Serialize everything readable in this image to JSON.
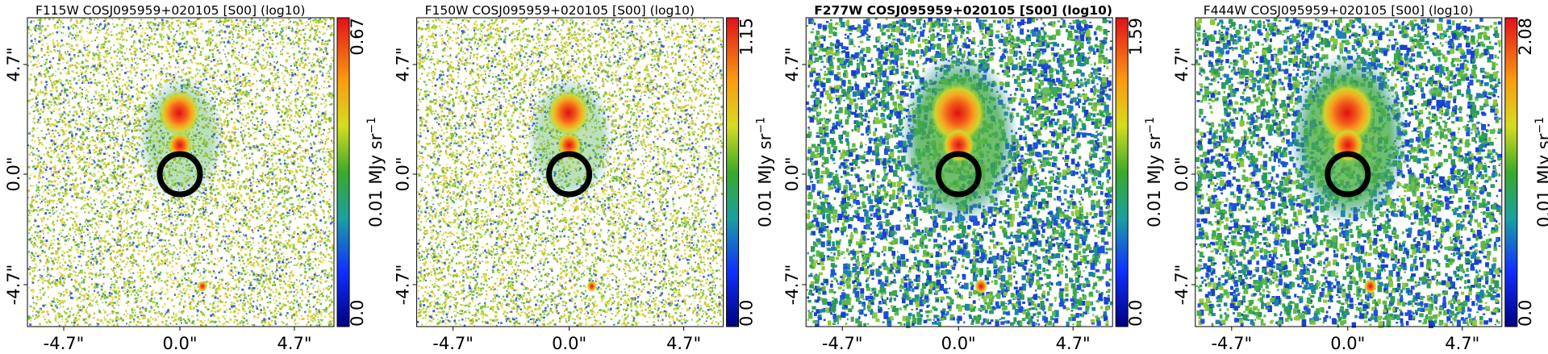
{
  "panels": [
    {
      "title": "F115W COSJ095959+020105 [S00] (log10)",
      "title_bold": false,
      "xticks": [
        "-4.7\"",
        "0.0\"",
        "4.7\""
      ],
      "yticks": [
        "4.7\"",
        "0.0\"",
        "-4.7\""
      ],
      "colorbar_label": "0.01 MJy sr",
      "colorbar_exponent": "−1",
      "colorbar_ticks": [
        "0.0",
        "0.67"
      ]
    },
    {
      "title": "F150W COSJ095959+020105 [S00] (log10)",
      "title_bold": false,
      "xticks": [
        "-4.7\"",
        "0.0\"",
        "4.7\""
      ],
      "yticks": [
        "4.7\"",
        "0.0\"",
        "-4.7\""
      ],
      "colorbar_label": "0.01 MJy sr",
      "colorbar_exponent": "−1",
      "colorbar_ticks": [
        "0.0",
        "1.15"
      ]
    },
    {
      "title": "F277W COSJ095959+020105 [S00] (log10)",
      "title_bold": true,
      "xticks": [
        "-4.7\"",
        "0.0\"",
        "4.7\""
      ],
      "yticks": [
        "4.7\"",
        "0.0\"",
        "-4.7\""
      ],
      "colorbar_label": "0.01 MJy sr",
      "colorbar_exponent": "−1",
      "colorbar_ticks": [
        "0.0",
        "1.59"
      ]
    },
    {
      "title": "F444W COSJ095959+020105 [S00] (log10)",
      "title_bold": false,
      "xticks": [
        "-4.7\"",
        "0.0\"",
        "4.7\""
      ],
      "yticks": [
        "4.7\"",
        "0.0\"",
        "-4.7\""
      ],
      "colorbar_label": "0.01 MJy sr",
      "colorbar_exponent": "−1",
      "colorbar_ticks": [
        "0.0",
        "2.08"
      ]
    }
  ]
}
